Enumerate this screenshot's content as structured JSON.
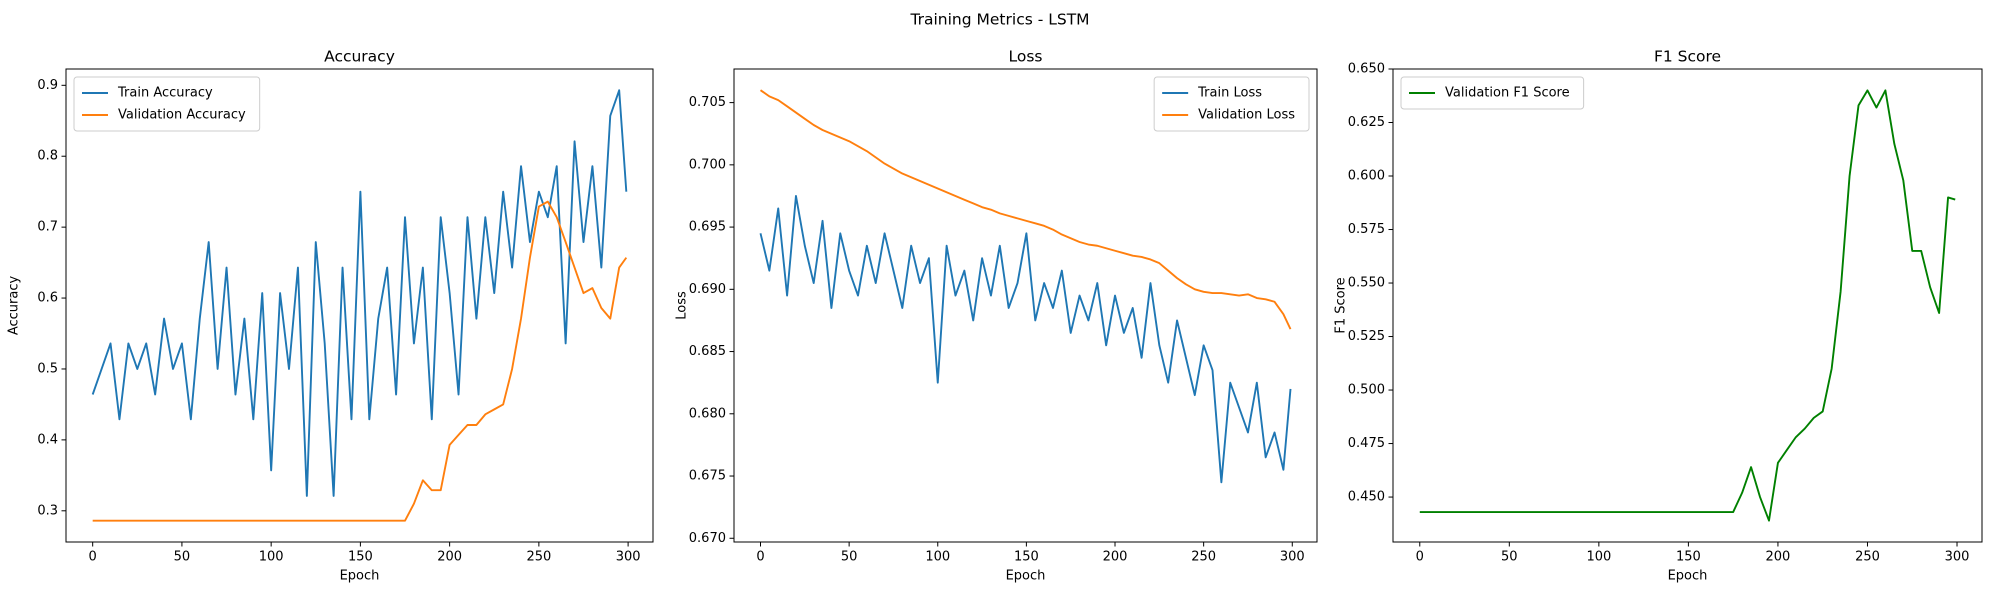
{
  "title": "Training Metrics - LSTM",
  "chart_data": [
    {
      "type": "line",
      "title": "Accuracy",
      "xlabel": "Epoch",
      "ylabel": "Accuracy",
      "legend": "upper left",
      "x": [
        0,
        5,
        10,
        15,
        20,
        25,
        30,
        35,
        40,
        45,
        50,
        55,
        60,
        65,
        70,
        75,
        80,
        85,
        90,
        95,
        100,
        105,
        110,
        115,
        120,
        125,
        130,
        135,
        140,
        145,
        150,
        155,
        160,
        165,
        170,
        175,
        180,
        185,
        190,
        195,
        200,
        205,
        210,
        215,
        220,
        225,
        230,
        235,
        240,
        245,
        250,
        255,
        260,
        265,
        270,
        275,
        280,
        285,
        290,
        295,
        299
      ],
      "series": [
        {
          "name": "Train Accuracy",
          "color": "#1f77b4",
          "values": [
            0.464,
            0.5,
            0.536,
            0.429,
            0.536,
            0.5,
            0.536,
            0.464,
            0.571,
            0.5,
            0.536,
            0.429,
            0.571,
            0.679,
            0.5,
            0.643,
            0.464,
            0.571,
            0.429,
            0.607,
            0.357,
            0.607,
            0.5,
            0.643,
            0.321,
            0.679,
            0.536,
            0.321,
            0.643,
            0.429,
            0.75,
            0.429,
            0.571,
            0.643,
            0.464,
            0.714,
            0.536,
            0.643,
            0.429,
            0.714,
            0.607,
            0.464,
            0.714,
            0.571,
            0.714,
            0.607,
            0.75,
            0.643,
            0.786,
            0.679,
            0.75,
            0.714,
            0.786,
            0.536,
            0.821,
            0.679,
            0.786,
            0.643,
            0.857,
            0.893,
            0.75
          ]
        },
        {
          "name": "Validation Accuracy",
          "color": "#ff7f0e",
          "values": [
            0.286,
            0.286,
            0.286,
            0.286,
            0.286,
            0.286,
            0.286,
            0.286,
            0.286,
            0.286,
            0.286,
            0.286,
            0.286,
            0.286,
            0.286,
            0.286,
            0.286,
            0.286,
            0.286,
            0.286,
            0.286,
            0.286,
            0.286,
            0.286,
            0.286,
            0.286,
            0.286,
            0.286,
            0.286,
            0.286,
            0.286,
            0.286,
            0.286,
            0.286,
            0.286,
            0.286,
            0.31,
            0.343,
            0.329,
            0.329,
            0.393,
            0.407,
            0.421,
            0.421,
            0.436,
            0.443,
            0.45,
            0.5,
            0.571,
            0.657,
            0.729,
            0.736,
            0.714,
            0.679,
            0.643,
            0.607,
            0.614,
            0.586,
            0.571,
            0.643,
            0.657
          ]
        }
      ],
      "xlim": [
        -14.95,
        313.95
      ],
      "xticks": [
        0,
        50,
        100,
        150,
        200,
        250,
        300
      ],
      "ylim": [
        0.256,
        0.923
      ],
      "yticks": [
        0.3,
        0.4,
        0.5,
        0.6,
        0.7,
        0.8,
        0.9
      ]
    },
    {
      "type": "line",
      "title": "Loss",
      "xlabel": "Epoch",
      "ylabel": "Loss",
      "legend": "upper right",
      "x": [
        0,
        5,
        10,
        15,
        20,
        25,
        30,
        35,
        40,
        45,
        50,
        55,
        60,
        65,
        70,
        75,
        80,
        85,
        90,
        95,
        100,
        105,
        110,
        115,
        120,
        125,
        130,
        135,
        140,
        145,
        150,
        155,
        160,
        165,
        170,
        175,
        180,
        185,
        190,
        195,
        200,
        205,
        210,
        215,
        220,
        225,
        230,
        235,
        240,
        245,
        250,
        255,
        260,
        265,
        270,
        275,
        280,
        285,
        290,
        295,
        299
      ],
      "series": [
        {
          "name": "Train Loss",
          "color": "#1f77b4",
          "values": [
            0.6945,
            0.6915,
            0.6965,
            0.6895,
            0.6975,
            0.6935,
            0.6905,
            0.6955,
            0.6885,
            0.6945,
            0.6915,
            0.6895,
            0.6935,
            0.6905,
            0.6945,
            0.6915,
            0.6885,
            0.6935,
            0.6905,
            0.6925,
            0.6825,
            0.6935,
            0.6895,
            0.6915,
            0.6875,
            0.6925,
            0.6895,
            0.6935,
            0.6885,
            0.6905,
            0.6945,
            0.6875,
            0.6905,
            0.6885,
            0.6915,
            0.6865,
            0.6895,
            0.6875,
            0.6905,
            0.6855,
            0.6895,
            0.6865,
            0.6885,
            0.6845,
            0.6905,
            0.6855,
            0.6825,
            0.6875,
            0.6845,
            0.6815,
            0.6855,
            0.6835,
            0.6745,
            0.6825,
            0.6805,
            0.6785,
            0.6825,
            0.6765,
            0.6785,
            0.6755,
            0.682
          ]
        },
        {
          "name": "Validation Loss",
          "color": "#ff7f0e",
          "values": [
            0.706,
            0.7055,
            0.7052,
            0.7047,
            0.7042,
            0.7037,
            0.7032,
            0.7028,
            0.7025,
            0.7022,
            0.7019,
            0.7015,
            0.7011,
            0.7006,
            0.7001,
            0.6997,
            0.6993,
            0.699,
            0.6987,
            0.6984,
            0.6981,
            0.6978,
            0.6975,
            0.6972,
            0.6969,
            0.6966,
            0.6964,
            0.6961,
            0.6959,
            0.6957,
            0.6955,
            0.6953,
            0.6951,
            0.6948,
            0.6944,
            0.6941,
            0.6938,
            0.6936,
            0.6935,
            0.6933,
            0.6931,
            0.6929,
            0.6927,
            0.6926,
            0.6924,
            0.6921,
            0.6915,
            0.6909,
            0.6904,
            0.69,
            0.6898,
            0.6897,
            0.6897,
            0.6896,
            0.6895,
            0.6896,
            0.6893,
            0.6892,
            0.689,
            0.688,
            0.6868
          ]
        }
      ],
      "xlim": [
        -14.95,
        313.95
      ],
      "xticks": [
        0,
        50,
        100,
        150,
        200,
        250,
        300
      ],
      "ylim": [
        0.6697,
        0.7077
      ],
      "yticks": [
        {
          "value": 0.67,
          "label": "0.670"
        },
        0.675,
        {
          "value": 0.68,
          "label": "0.680"
        },
        0.685,
        {
          "value": 0.69,
          "label": "0.690"
        },
        0.695,
        {
          "value": 0.7,
          "label": "0.700"
        },
        0.705
      ]
    },
    {
      "type": "line",
      "title": "F1 Score",
      "xlabel": "Epoch",
      "ylabel": "F1 Score",
      "legend": "upper left",
      "x": [
        0,
        5,
        10,
        15,
        20,
        25,
        30,
        35,
        40,
        45,
        50,
        55,
        60,
        65,
        70,
        75,
        80,
        85,
        90,
        95,
        100,
        105,
        110,
        115,
        120,
        125,
        130,
        135,
        140,
        145,
        150,
        155,
        160,
        165,
        170,
        175,
        180,
        185,
        190,
        195,
        200,
        205,
        210,
        215,
        220,
        225,
        230,
        235,
        240,
        245,
        250,
        255,
        260,
        265,
        270,
        275,
        280,
        285,
        290,
        295,
        299
      ],
      "series": [
        {
          "name": "Validation F1 Score",
          "color": "#008000",
          "values": [
            0.443,
            0.443,
            0.443,
            0.443,
            0.443,
            0.443,
            0.443,
            0.443,
            0.443,
            0.443,
            0.443,
            0.443,
            0.443,
            0.443,
            0.443,
            0.443,
            0.443,
            0.443,
            0.443,
            0.443,
            0.443,
            0.443,
            0.443,
            0.443,
            0.443,
            0.443,
            0.443,
            0.443,
            0.443,
            0.443,
            0.443,
            0.443,
            0.443,
            0.443,
            0.443,
            0.443,
            0.452,
            0.464,
            0.45,
            0.439,
            0.466,
            0.472,
            0.478,
            0.482,
            0.487,
            0.49,
            0.51,
            0.546,
            0.6,
            0.633,
            0.64,
            0.632,
            0.64,
            0.615,
            0.598,
            0.565,
            0.565,
            0.548,
            0.536,
            0.59,
            0.589
          ]
        }
      ],
      "xlim": [
        -14.95,
        313.95
      ],
      "xticks": [
        0,
        50,
        100,
        150,
        200,
        250,
        300
      ],
      "ylim": [
        0.429,
        0.65
      ],
      "yticks": [
        {
          "value": 0.45,
          "label": "0.450"
        },
        0.475,
        {
          "value": 0.5,
          "label": "0.500"
        },
        0.525,
        {
          "value": 0.55,
          "label": "0.550"
        },
        0.575,
        {
          "value": 0.6,
          "label": "0.600"
        },
        0.625,
        {
          "value": 0.65,
          "label": "0.650"
        }
      ]
    }
  ]
}
